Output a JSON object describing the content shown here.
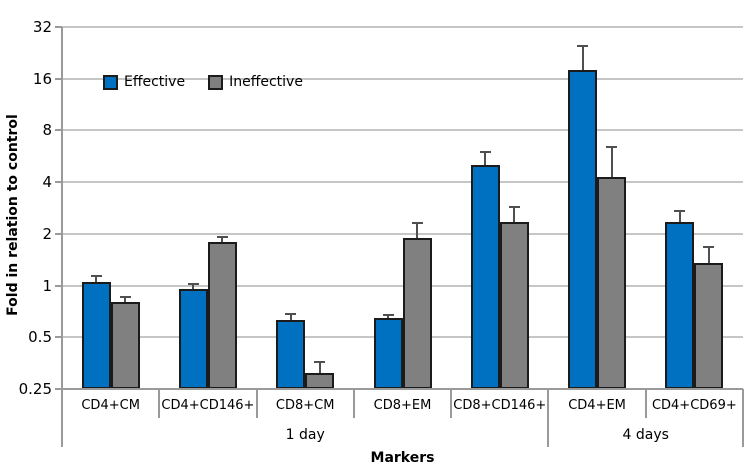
{
  "figure": {
    "y_axis_title": "Fold in relation to control",
    "x_axis_title": "Markers"
  },
  "chart_data": {
    "type": "bar",
    "title": "",
    "xlabel": "Markers",
    "ylabel": "Fold in relation to control",
    "y_scale": "log2",
    "ylim": [
      0.25,
      32
    ],
    "yticks": [
      32,
      16,
      8,
      4,
      2,
      1,
      0.5,
      0.25
    ],
    "ytick_labels": [
      "32",
      "16",
      "8",
      "4",
      "2",
      "1",
      "0.5",
      "0.25"
    ],
    "grid": true,
    "legend_position": "inside-top-left",
    "categories": [
      "CD4+CM",
      "CD4+CD146+",
      "CD8+CM",
      "CD8+EM",
      "CD8+CD146+",
      "CD4+EM",
      "CD4+CD69+"
    ],
    "groups": [
      {
        "label": "1 day",
        "span": 5
      },
      {
        "label": "4 days",
        "span": 2
      }
    ],
    "series": [
      {
        "name": "Effective",
        "color": "#0070c0",
        "values": [
          1.05,
          0.95,
          0.63,
          0.65,
          5.0,
          17.9,
          2.35
        ],
        "error_up": [
          0.08,
          0.07,
          0.05,
          0.02,
          1.0,
          7.0,
          0.35
        ]
      },
      {
        "name": "Ineffective",
        "color": "#808080",
        "values": [
          0.8,
          1.8,
          0.31,
          1.9,
          2.35,
          4.3,
          1.35
        ],
        "error_up": [
          0.06,
          0.11,
          0.05,
          0.4,
          0.5,
          2.1,
          0.33
        ]
      }
    ]
  }
}
